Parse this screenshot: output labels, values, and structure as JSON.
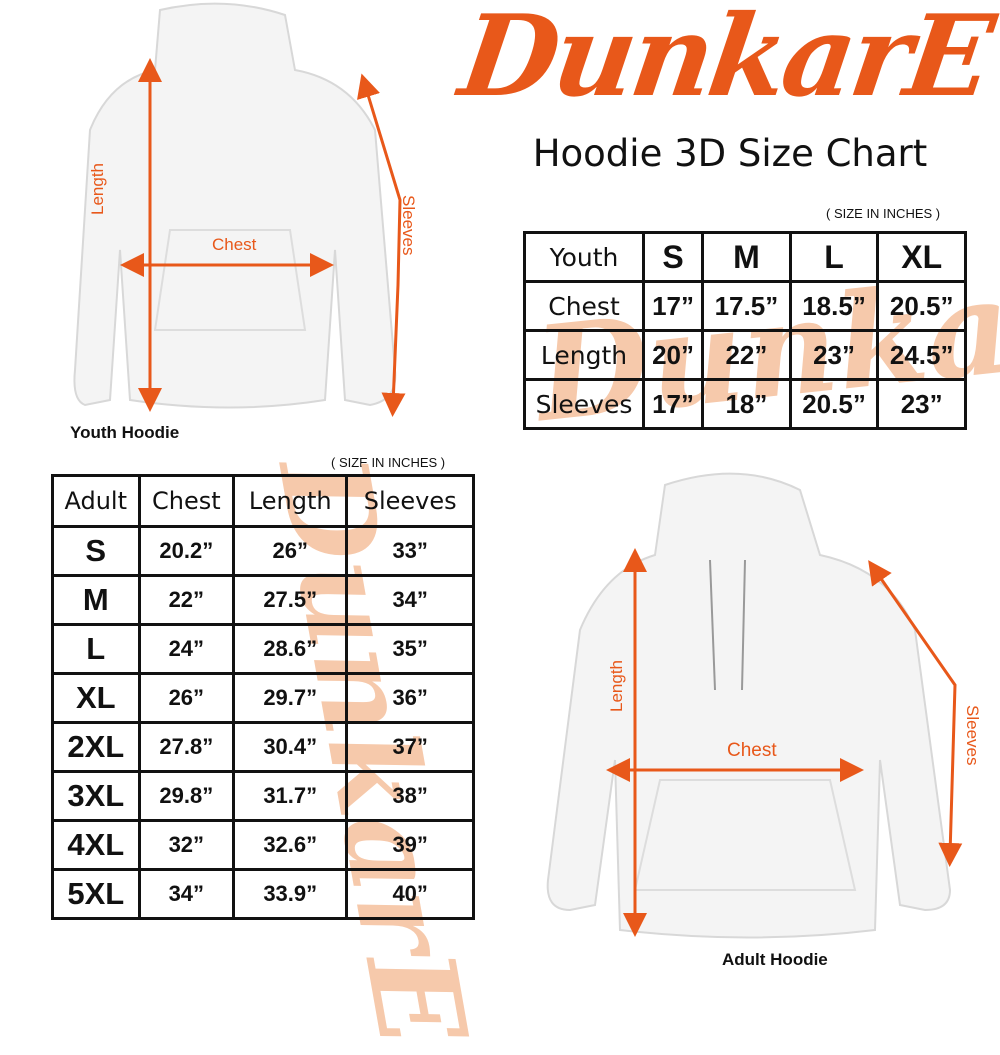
{
  "brand": {
    "logo_text": "DunkarE",
    "color": "#e8581a",
    "watermark_color": "#f6c9ab"
  },
  "title": "Hoodie 3D Size Chart",
  "youth": {
    "units_note": "( SIZE IN INCHES )",
    "image_caption": "Youth Hoodie",
    "measure_labels": {
      "length": "Length",
      "chest": "Chest",
      "sleeves": "Sleeves"
    },
    "table": {
      "header": [
        "Youth",
        "S",
        "M",
        "L",
        "XL"
      ],
      "rows": [
        [
          "Chest",
          "17”",
          "17.5”",
          "18.5”",
          "20.5”"
        ],
        [
          "Length",
          "20”",
          "22”",
          "23”",
          "24.5”"
        ],
        [
          "Sleeves",
          "17”",
          "18”",
          "20.5”",
          "23”"
        ]
      ]
    }
  },
  "adult": {
    "units_note": "( SIZE IN INCHES )",
    "image_caption": "Adult Hoodie",
    "measure_labels": {
      "length": "Length",
      "chest": "Chest",
      "sleeves": "Sleeves"
    },
    "table": {
      "header": [
        "Adult",
        "Chest",
        "Length",
        "Sleeves"
      ],
      "rows": [
        [
          "S",
          "20.2”",
          "26”",
          "33”"
        ],
        [
          "M",
          "22”",
          "27.5”",
          "34”"
        ],
        [
          "L",
          "24”",
          "28.6”",
          "35”"
        ],
        [
          "XL",
          "26”",
          "29.7”",
          "36”"
        ],
        [
          "2XL",
          "27.8”",
          "30.4”",
          "37”"
        ],
        [
          "3XL",
          "29.8”",
          "31.7”",
          "38”"
        ],
        [
          "4XL",
          "32”",
          "32.6”",
          "39”"
        ],
        [
          "5XL",
          "34”",
          "33.9”",
          "40”"
        ]
      ]
    }
  }
}
